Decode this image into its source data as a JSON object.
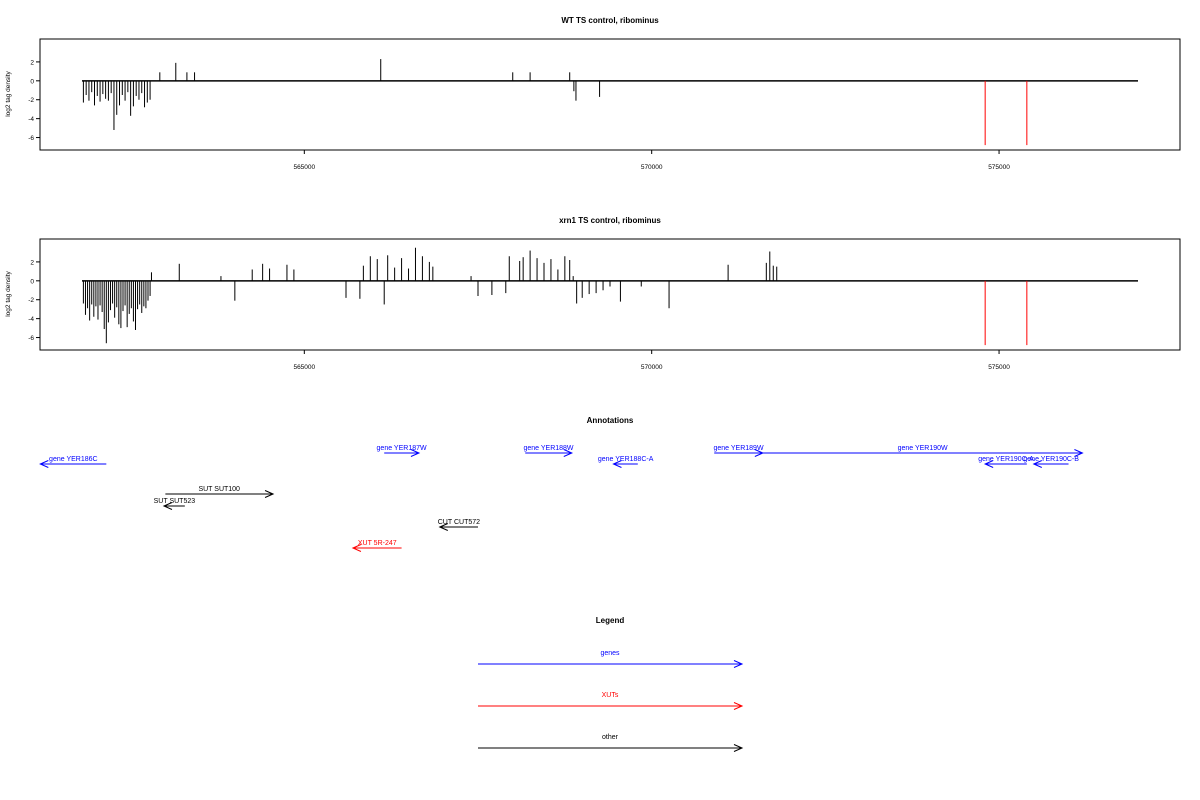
{
  "chart_data": [
    {
      "type": "bar",
      "title": "WT TS control, ribominus",
      "ylabel": "log2 tag density",
      "xlabel": "",
      "xlim": [
        561800,
        577000
      ],
      "ylim": [
        -7,
        4
      ],
      "xticks": [
        565000,
        570000,
        575000
      ],
      "yticks": [
        2,
        0,
        -2,
        -4,
        -6
      ],
      "bar_color": "#000000",
      "marker_color": "#ff0000",
      "markers": [
        {
          "x": 574800,
          "y": -6.8
        },
        {
          "x": 575400,
          "y": -6.8
        }
      ],
      "series": [
        {
          "x": [
            561820,
            561860,
            561900,
            561940,
            561980,
            562020,
            562060,
            562100,
            562140,
            562180,
            562220,
            562260,
            562300,
            562340,
            562380,
            562420,
            562460,
            562500,
            562540,
            562580,
            562620,
            562660,
            562700,
            562740,
            562780,
            562920,
            563150,
            563310,
            563420,
            566100,
            568000,
            568250,
            568820,
            568880,
            568910,
            569250
          ],
          "values": [
            -2.3,
            -1.5,
            -2.1,
            -1.2,
            -2.6,
            -1.6,
            -2.2,
            -1.4,
            -1.9,
            -2.1,
            -1.3,
            -5.2,
            -3.6,
            -2.6,
            -1.5,
            -2.1,
            -1.2,
            -3.7,
            -2.7,
            -1.6,
            -2.0,
            -1.3,
            -2.8,
            -2.3,
            -2.0,
            0.9,
            1.9,
            0.9,
            0.9,
            2.3,
            0.9,
            0.9,
            0.9,
            -1.1,
            -2.1,
            -1.7
          ]
        }
      ]
    },
    {
      "type": "bar",
      "title": "xrn1 TS control, ribominus",
      "ylabel": "log2 tag density",
      "xlabel": "",
      "xlim": [
        561800,
        577000
      ],
      "ylim": [
        -7,
        4
      ],
      "xticks": [
        565000,
        570000,
        575000
      ],
      "yticks": [
        2,
        0,
        -2,
        -4,
        -6
      ],
      "bar_color": "#000000",
      "marker_color": "#ff0000",
      "markers": [
        {
          "x": 574800,
          "y": -6.8
        },
        {
          "x": 575400,
          "y": -6.8
        }
      ],
      "series": [
        {
          "x": [
            561820,
            561850,
            561880,
            561910,
            561940,
            561970,
            562000,
            562030,
            562060,
            562090,
            562120,
            562150,
            562180,
            562210,
            562240,
            562270,
            562300,
            562330,
            562360,
            562390,
            562420,
            562450,
            562480,
            562510,
            562540,
            562570,
            562600,
            562630,
            562660,
            562690,
            562720,
            562750,
            562780,
            562800,
            563200,
            563800,
            564000,
            564250,
            564400,
            564500,
            564750,
            564850,
            565600,
            565800,
            565850,
            565950,
            566050,
            566150,
            566200,
            566300,
            566400,
            566500,
            566600,
            566700,
            566800,
            566850,
            567400,
            567500,
            567700,
            567900,
            567950,
            568100,
            568150,
            568250,
            568350,
            568450,
            568550,
            568650,
            568750,
            568820,
            568870,
            568920,
            569000,
            569100,
            569200,
            569300,
            569400,
            569550,
            569850,
            570250,
            571100,
            571650,
            571700,
            571750,
            571800
          ],
          "values": [
            -2.4,
            -3.6,
            -2.9,
            -4.2,
            -2.5,
            -3.8,
            -2.7,
            -4.1,
            -2.6,
            -3.3,
            -5.1,
            -6.6,
            -4.4,
            -3.1,
            -2.4,
            -3.9,
            -2.8,
            -4.6,
            -5.0,
            -3.2,
            -2.6,
            -4.9,
            -3.5,
            -2.9,
            -4.3,
            -5.2,
            -3.0,
            -2.5,
            -3.4,
            -2.7,
            -2.9,
            -2.1,
            -1.6,
            0.9,
            1.8,
            0.5,
            -2.1,
            1.2,
            1.8,
            1.3,
            1.7,
            1.2,
            -1.8,
            -1.9,
            1.6,
            2.6,
            2.3,
            -2.5,
            2.7,
            1.4,
            2.4,
            1.3,
            3.5,
            2.6,
            2.0,
            1.5,
            0.5,
            -1.6,
            -1.5,
            -1.3,
            2.6,
            2.1,
            2.5,
            3.2,
            2.4,
            1.9,
            2.3,
            1.2,
            2.6,
            2.2,
            0.5,
            -2.4,
            -1.8,
            -1.4,
            -1.3,
            -1.0,
            -0.6,
            -2.2,
            -0.6,
            -2.9,
            1.7,
            1.9,
            3.1,
            1.6,
            1.5
          ],
          "values_repeat": []
        }
      ]
    }
  ],
  "annotations": {
    "title": "Annotations",
    "xlim": [
      561800,
      577000
    ],
    "items": [
      {
        "label": "gene YER186C",
        "start": 562150,
        "end": 561200,
        "color": "#0000ff"
      },
      {
        "label": "gene YER187W",
        "start": 566150,
        "end": 566650,
        "color": "#0000ff"
      },
      {
        "label": "gene YER188W",
        "start": 568180,
        "end": 568850,
        "color": "#0000ff"
      },
      {
        "label": "gene YER188C-A",
        "start": 569800,
        "end": 569450,
        "color": "#0000ff"
      },
      {
        "label": "gene YER189W",
        "start": 570900,
        "end": 571600,
        "color": "#0000ff"
      },
      {
        "label": "gene YER190W",
        "start": 571600,
        "end": 576200,
        "color": "#0000ff"
      },
      {
        "label": "gene YER190C-A",
        "start": 575400,
        "end": 574800,
        "color": "#0000ff"
      },
      {
        "label": "gene YER190C-B",
        "start": 576000,
        "end": 575500,
        "color": "#0000ff"
      },
      {
        "label": "SUT SUT100",
        "start": 563000,
        "end": 564550,
        "color": "#000000"
      },
      {
        "label": "SUT SUT523",
        "start": 563280,
        "end": 562980,
        "color": "#000000"
      },
      {
        "label": "CUT CUT572",
        "start": 567500,
        "end": 566950,
        "color": "#000000"
      },
      {
        "label": "XUT 5R-247",
        "start": 566400,
        "end": 565700,
        "color": "#ff0000"
      }
    ]
  },
  "legend": {
    "title": "Legend",
    "entries": [
      {
        "label": "genes",
        "color": "#0000ff"
      },
      {
        "label": "XUTs",
        "color": "#ff0000"
      },
      {
        "label": "other",
        "color": "#000000"
      }
    ]
  }
}
